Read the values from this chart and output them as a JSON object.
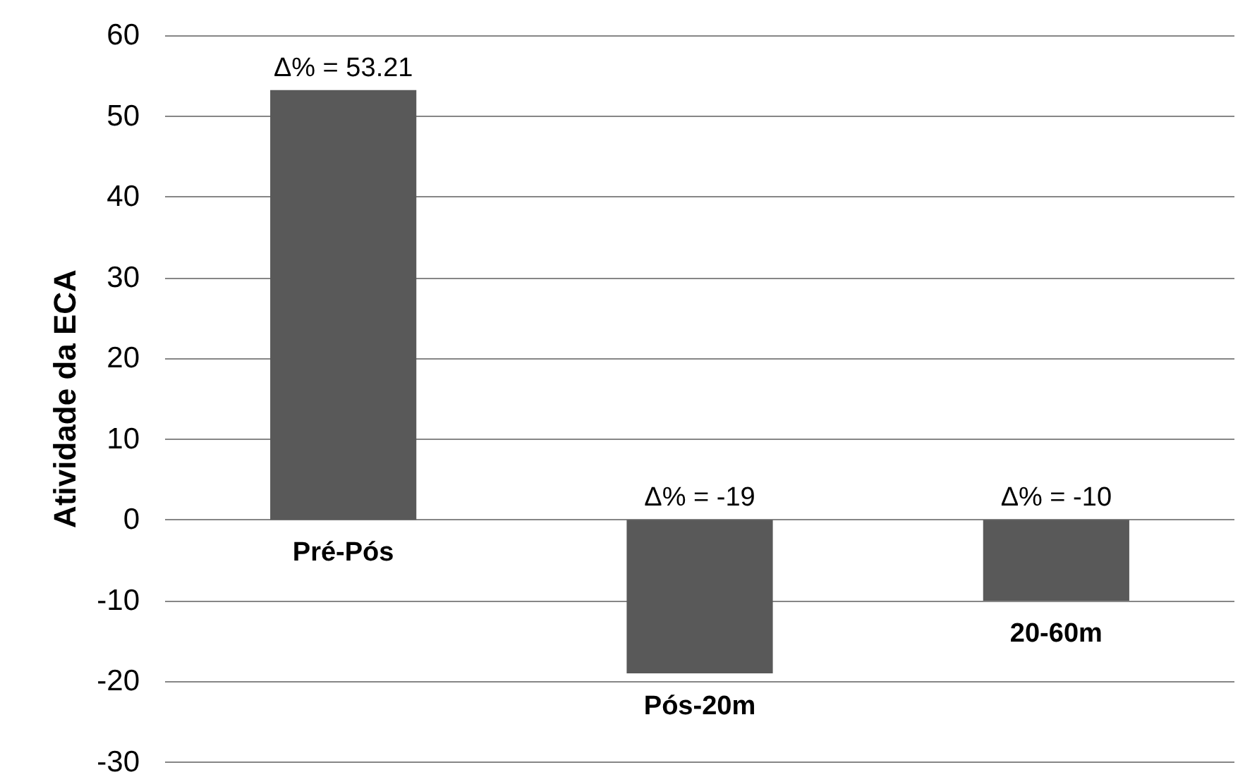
{
  "chart_data": {
    "type": "bar",
    "ylabel": "Atividade da ECA",
    "categories": [
      "Pré-Pós",
      "Pós-20m",
      "20-60m"
    ],
    "values": [
      53.21,
      -19,
      -10
    ],
    "color": "#595959",
    "value_labels": [
      "Δ% = 53.21",
      "Δ% = -19",
      "Δ% = -10"
    ],
    "ylim": [
      -30,
      60
    ],
    "yticks": [
      -30,
      -20,
      -10,
      0,
      10,
      20,
      30,
      40,
      50,
      60
    ],
    "grid": "y"
  }
}
